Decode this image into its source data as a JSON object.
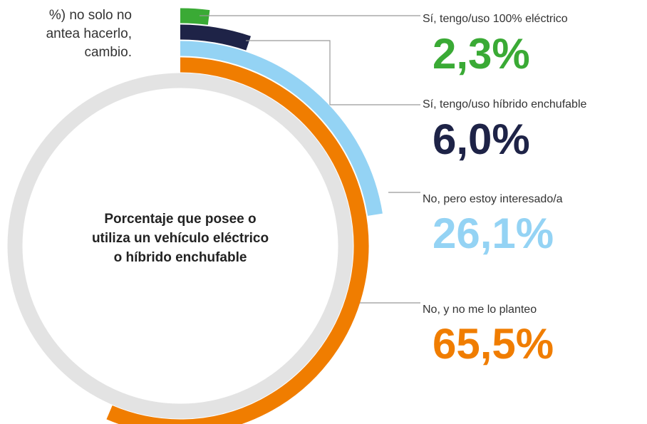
{
  "intro": [
    "%) no solo no",
    "antea hacerlo,",
    "cambio."
  ],
  "chart_data": {
    "type": "radial_bar",
    "title_lines": [
      "Porcentaje que posee o",
      "utiliza un vehículo eléctrico",
      "o híbrido enchufable"
    ],
    "categories": [
      "Sí, tengo/uso 100% eléctrico",
      "Sí, tengo/uso híbrido enchufable",
      "No, pero estoy interesado/a",
      "No, y no me lo planteo"
    ],
    "values": [
      2.3,
      6.0,
      26.1,
      65.5
    ],
    "value_labels": [
      "2,3%",
      "6,0%",
      "26,1%",
      "65,5%"
    ],
    "colors": [
      "#3aaa35",
      "#1e2347",
      "#94d3f4",
      "#f07d00"
    ],
    "track_color": "#e3e3e3"
  }
}
